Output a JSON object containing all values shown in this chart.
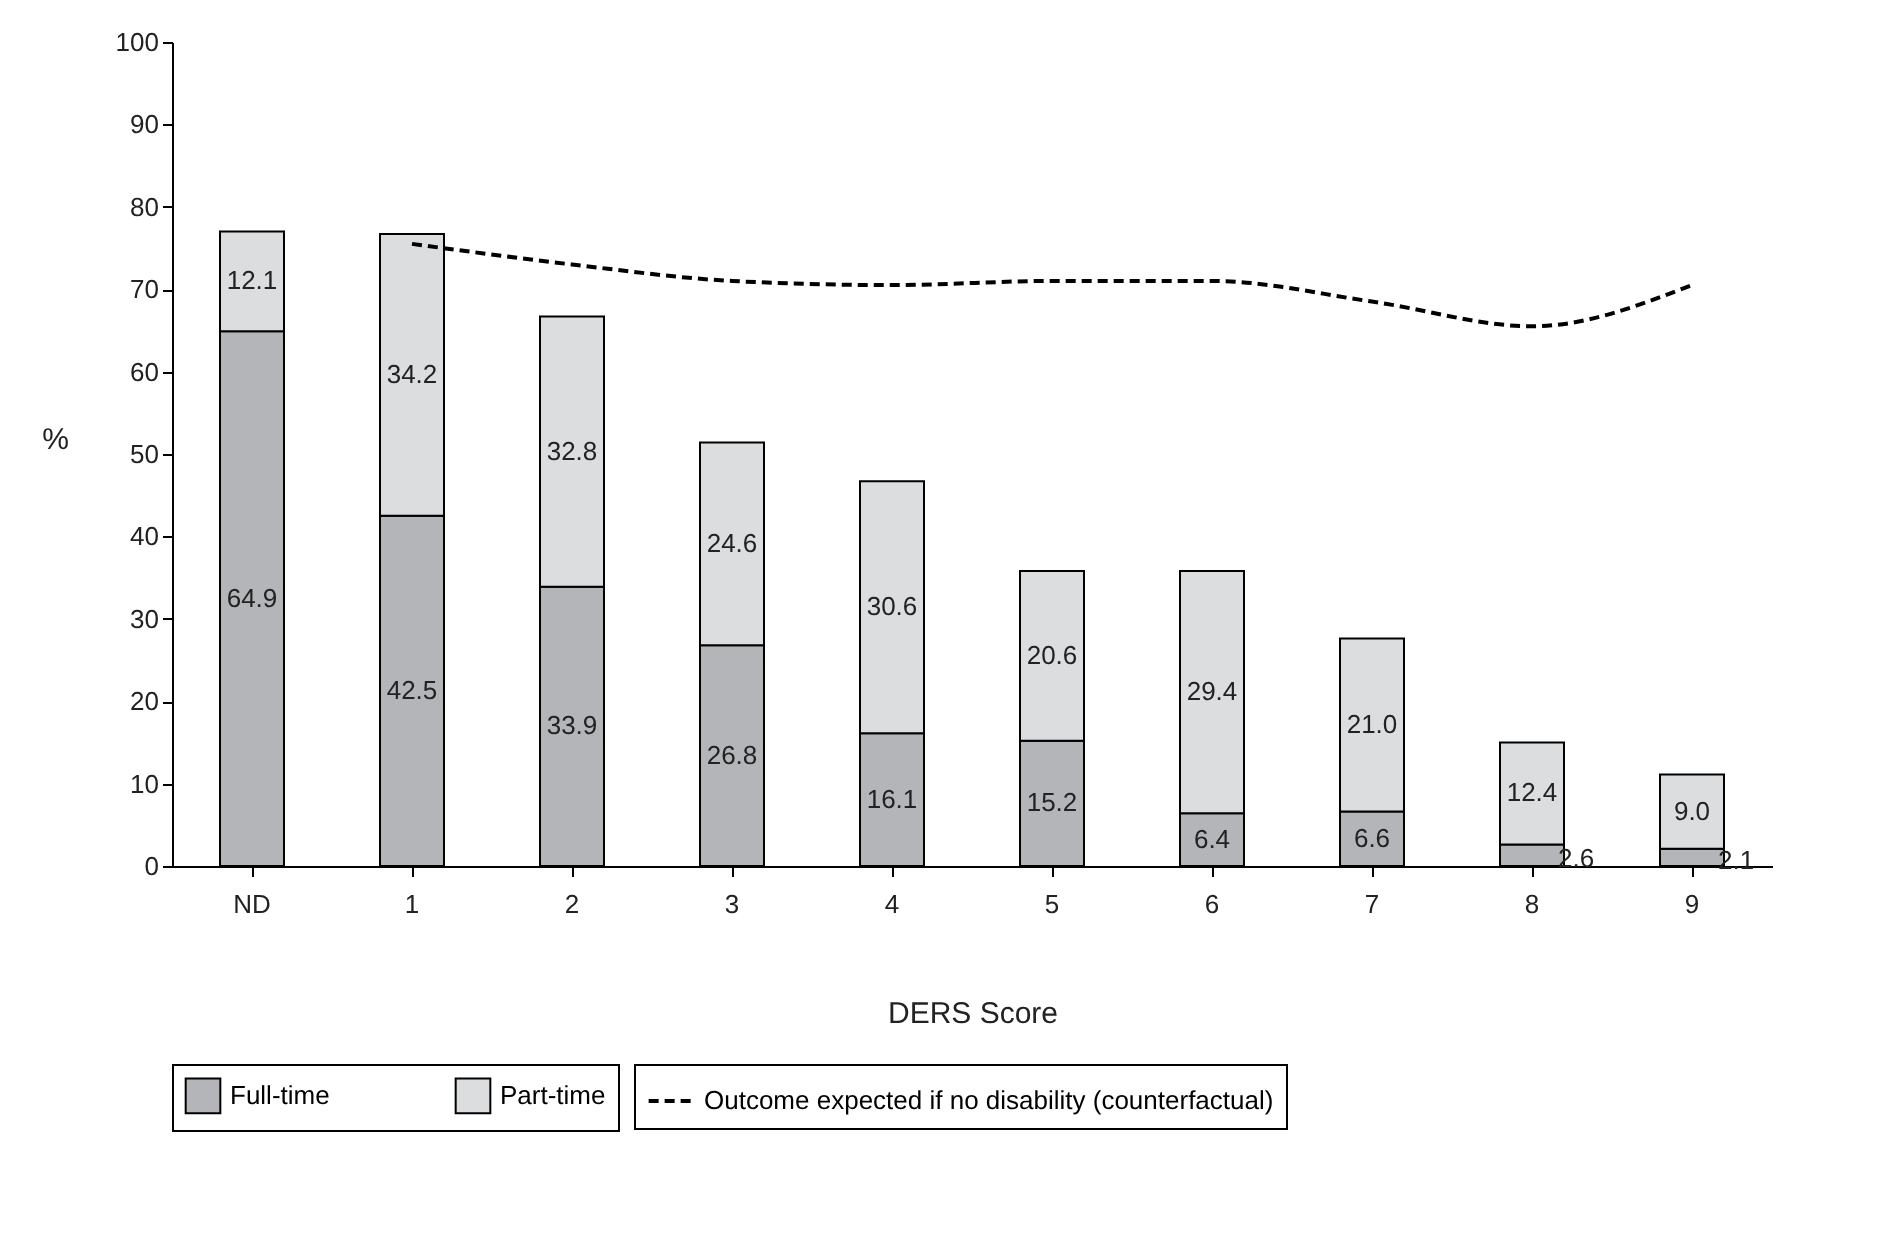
{
  "chart_data": {
    "type": "bar",
    "stacked": true,
    "xlabel": "DERS Score",
    "ylabel": "%",
    "categories": [
      "ND",
      "1",
      "2",
      "3",
      "4",
      "5",
      "6",
      "7",
      "8",
      "9"
    ],
    "series": [
      {
        "name": "Full-time",
        "color": "#b4b5b9",
        "values": [
          64.9,
          42.5,
          33.9,
          26.8,
          16.1,
          15.2,
          6.4,
          6.6,
          2.6,
          2.1
        ],
        "value_labels": [
          "64.9",
          "42.5",
          "33.9",
          "26.8",
          "16.1",
          "15.2",
          "6.4",
          "6.6",
          "2.6",
          "2.1"
        ]
      },
      {
        "name": "Part-time",
        "color": "#dcdddf",
        "values": [
          12.1,
          34.2,
          32.8,
          24.6,
          30.6,
          20.6,
          29.4,
          21.0,
          12.4,
          9.0
        ],
        "value_labels": [
          "12.1",
          "34.2",
          "32.8",
          "24.6",
          "30.6",
          "20.6",
          "29.4",
          "21.0",
          "12.4",
          "9.0"
        ]
      },
      {
        "name": "Outcome expected if no disability (counterfactual)",
        "type": "line",
        "line_style": "dashed",
        "color": "#000000",
        "values": [
          null,
          75.5,
          73,
          71,
          70.5,
          71,
          71,
          68.5,
          65.5,
          70.5
        ]
      }
    ],
    "ylim": [
      0,
      100
    ],
    "yticks": [
      0,
      10,
      20,
      30,
      40,
      50,
      60,
      70,
      80,
      90,
      100
    ],
    "legend": "bottom",
    "grid": false
  }
}
